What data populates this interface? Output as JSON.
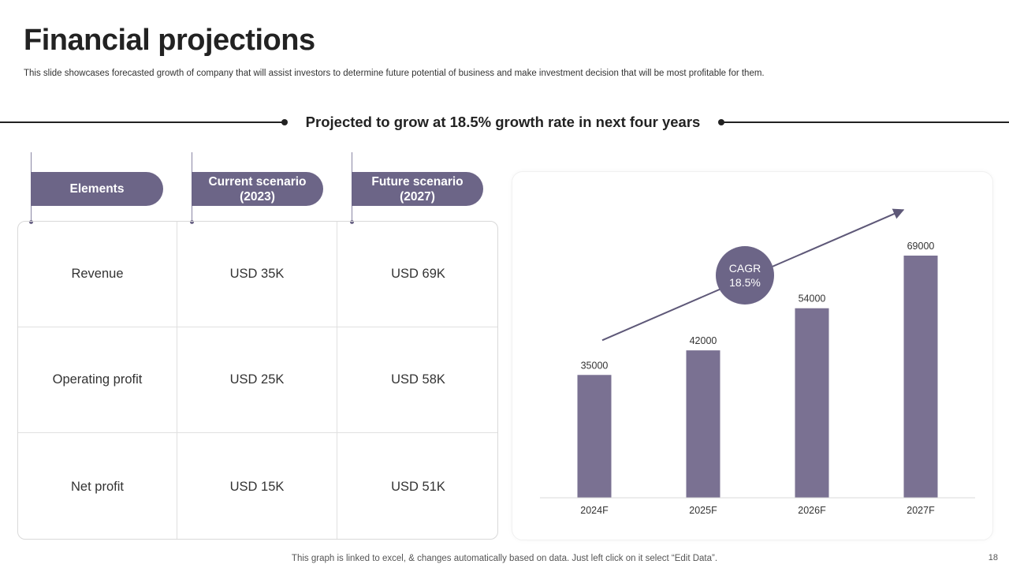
{
  "header": {
    "title": "Financial projections",
    "subtitle": "This slide showcases forecasted growth of company that will assist investors to determine future potential of business and make investment decision that will be most profitable for them."
  },
  "banner": {
    "text": "Projected to grow at 18.5% growth rate in next four years"
  },
  "table": {
    "headers": [
      "Elements",
      "Current scenario\n(2023)",
      "Future scenario\n(2027)"
    ],
    "rows": [
      [
        "Revenue",
        "USD 35K",
        "USD 69K"
      ],
      [
        "Operating profit",
        "USD 25K",
        "USD 58K"
      ],
      [
        "Net profit",
        "USD 15K",
        "USD 51K"
      ]
    ]
  },
  "chart_data": {
    "type": "bar",
    "categories": [
      "2024F",
      "2025F",
      "2026F",
      "2027F"
    ],
    "values": [
      35000,
      42000,
      54000,
      69000
    ],
    "data_labels": [
      "35000",
      "42000",
      "54000",
      "69000"
    ],
    "ylim": [
      0,
      80000
    ],
    "title": "",
    "xlabel": "",
    "ylabel": "",
    "grid": false,
    "annotation": {
      "label": "CAGR",
      "value": "18.5%"
    },
    "bar_color": "#7a7192"
  },
  "colors": {
    "accent": "#6c6587",
    "bar": "#7a7192",
    "text": "#222222"
  },
  "footer": {
    "note": "This graph is linked to excel, & changes automatically based on data. Just left click on it select “Edit Data”."
  },
  "page_number": "18"
}
